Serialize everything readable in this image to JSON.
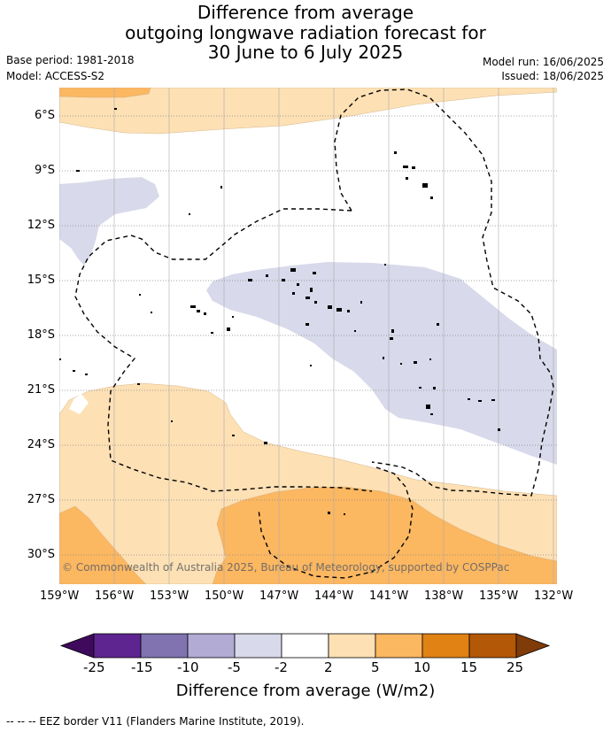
{
  "title": {
    "line1": "Difference from average",
    "line2": "outgoing longwave radiation forecast for",
    "line3": "30 June to 6 July 2025"
  },
  "meta": {
    "base_period": "Base period: 1981-2018",
    "model": "Model: ACCESS-S2",
    "model_run": "Model run: 16/06/2025",
    "issued": "Issued: 18/06/2025"
  },
  "map": {
    "lat_ticks": [
      "6°S",
      "9°S",
      "12°S",
      "15°S",
      "18°S",
      "21°S",
      "24°S",
      "27°S",
      "30°S"
    ],
    "lon_ticks": [
      "159°W",
      "156°W",
      "153°W",
      "150°W",
      "147°W",
      "144°W",
      "141°W",
      "138°W",
      "135°W",
      "132°W"
    ],
    "copyright": "© Commonwealth of Australia 2025, Bureau of Meteorology, supported by COSPPac"
  },
  "colorbar": {
    "levels": [
      "-25",
      "-15",
      "-10",
      "-5",
      "-2",
      "2",
      "5",
      "10",
      "15",
      "25"
    ],
    "colors": [
      "#3f0a5c",
      "#5e2590",
      "#8073b0",
      "#b2abd4",
      "#d8d9ea",
      "#ffffff",
      "#fde0b4",
      "#fcb761",
      "#e08214",
      "#b35806",
      "#7f3b08"
    ],
    "title": "Difference from average (W/m2)"
  },
  "footer": "-- -- -- EEZ border V11 (Flanders Marine Institute, 2019)."
}
